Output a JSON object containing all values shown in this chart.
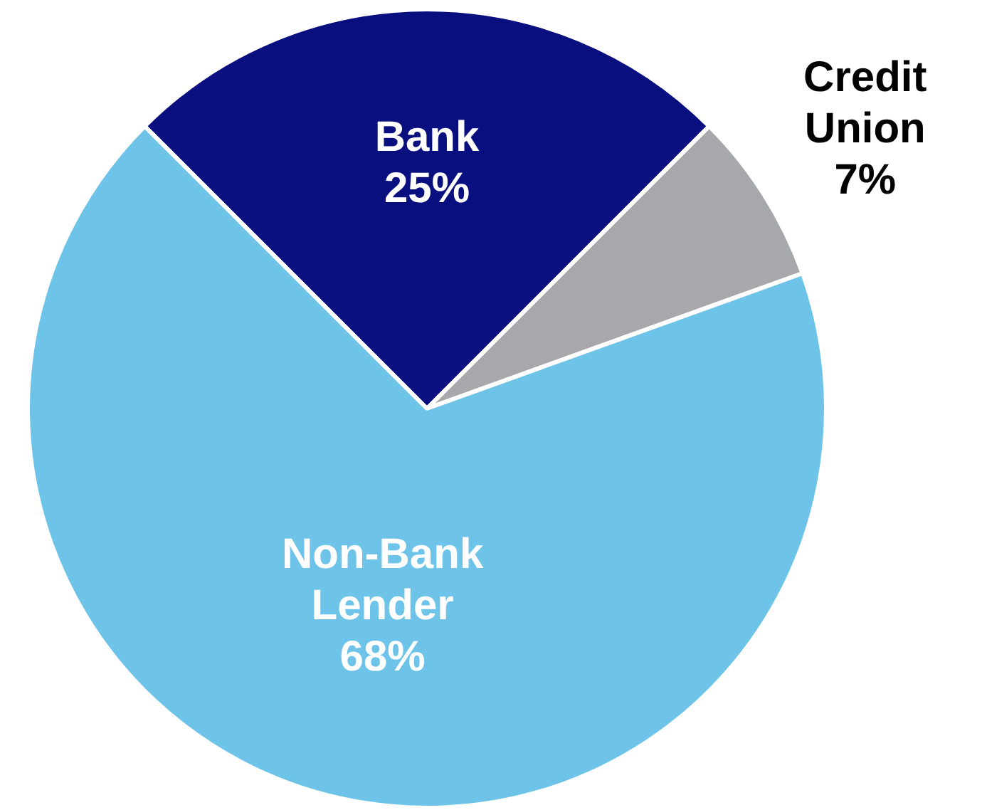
{
  "chart_data": {
    "type": "pie",
    "categories": [
      "Bank",
      "Credit Union",
      "Non-Bank Lender"
    ],
    "values": [
      25,
      7,
      68
    ],
    "colors": [
      "#0a0f80",
      "#a6a8ab",
      "#6ec4e8"
    ],
    "value_labels": [
      "25%",
      "7%",
      "68%"
    ],
    "legend": false
  }
}
